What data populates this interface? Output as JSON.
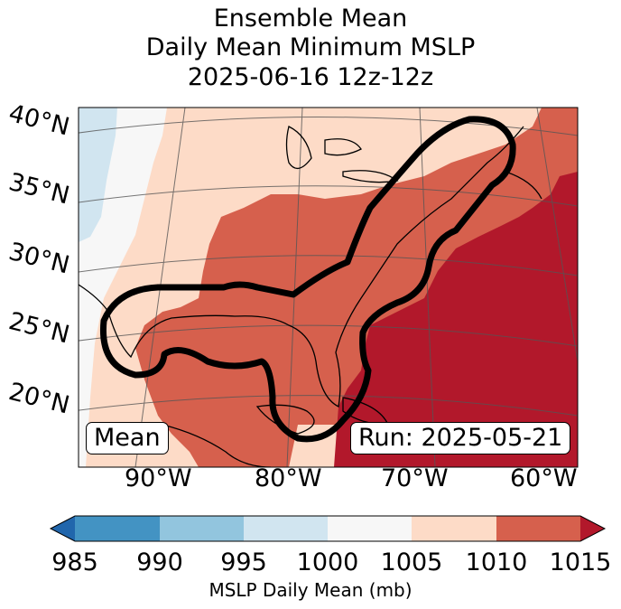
{
  "title": {
    "line1": "Ensemble Mean",
    "line2": "Daily Mean Minimum MSLP",
    "line3": "2025-06-16 12z-12z"
  },
  "map": {
    "lat_labels": [
      "40°N",
      "35°N",
      "30°N",
      "25°N",
      "20°N"
    ],
    "lon_labels": [
      "90°W",
      "80°W",
      "70°W",
      "60°W"
    ],
    "mean_label": "Mean",
    "run_label": "Run: 2025-05-21"
  },
  "colorbar": {
    "ticks": [
      "985",
      "990",
      "995",
      "1000",
      "1005",
      "1010",
      "1015"
    ],
    "label": "MSLP Daily Mean (mb)",
    "colors": [
      "#2166ac",
      "#4393c3",
      "#92c5de",
      "#d1e5f0",
      "#f7f7f7",
      "#fddbc7",
      "#d6604d",
      "#b2182b"
    ]
  },
  "legend_colors": {
    "contour": "#000000"
  }
}
